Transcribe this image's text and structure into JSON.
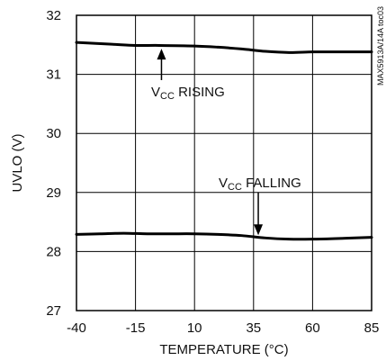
{
  "chart_data": {
    "type": "line",
    "xlabel": "TEMPERATURE (°C)",
    "ylabel": "UVLO (V)",
    "watermark": "MAX5913A/14A toc03",
    "xlim": [
      -40,
      85
    ],
    "ylim": [
      27,
      32
    ],
    "x_ticks": [
      "-40",
      "-15",
      "10",
      "35",
      "60",
      "85"
    ],
    "y_ticks": [
      "27",
      "28",
      "29",
      "30",
      "31",
      "32"
    ],
    "grid": true,
    "series": [
      {
        "name": "VCC RISING",
        "x": [
          -40,
          -25,
          -15,
          -5,
          10,
          20,
          30,
          40,
          50,
          60,
          70,
          85
        ],
        "y": [
          31.54,
          31.51,
          31.49,
          31.49,
          31.48,
          31.46,
          31.43,
          31.39,
          31.37,
          31.38,
          31.38,
          31.38
        ]
      },
      {
        "name": "VCC FALLING",
        "x": [
          -40,
          -30,
          -20,
          -10,
          0,
          10,
          20,
          30,
          40,
          50,
          60,
          70,
          85
        ],
        "y": [
          28.29,
          28.3,
          28.31,
          28.3,
          28.3,
          28.3,
          28.29,
          28.27,
          28.23,
          28.21,
          28.21,
          28.22,
          28.24
        ]
      }
    ],
    "annotations": [
      {
        "id": "rising",
        "main": "V",
        "sub": "CC",
        "rest": " RISING",
        "point": [
          -4,
          31.48
        ]
      },
      {
        "id": "falling",
        "main": "V",
        "sub": "CC",
        "rest": " FALLING",
        "point": [
          37,
          28.23
        ]
      }
    ]
  }
}
